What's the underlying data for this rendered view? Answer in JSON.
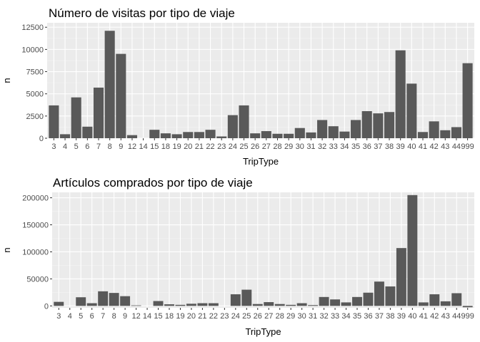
{
  "chart_data": [
    {
      "type": "bar",
      "title": "Número de visitas por tipo de viaje",
      "xlabel": "TripType",
      "ylabel": "n",
      "ylim": [
        0,
        13000
      ],
      "yticks": [
        0,
        2500,
        5000,
        7500,
        10000,
        12500
      ],
      "ytick_labels": [
        "0",
        "2500",
        "5000",
        "7500",
        "10000",
        "12500"
      ],
      "grid": true,
      "categories": [
        "3",
        "4",
        "5",
        "6",
        "7",
        "8",
        "9",
        "12",
        "14",
        "15",
        "18",
        "19",
        "20",
        "21",
        "22",
        "23",
        "24",
        "25",
        "26",
        "27",
        "28",
        "29",
        "30",
        "31",
        "32",
        "33",
        "34",
        "35",
        "36",
        "37",
        "38",
        "39",
        "40",
        "41",
        "42",
        "43",
        "44",
        "999"
      ],
      "values": [
        3700,
        450,
        4600,
        1300,
        5700,
        12100,
        9500,
        350,
        0,
        950,
        550,
        450,
        700,
        700,
        950,
        200,
        2600,
        3700,
        550,
        800,
        500,
        500,
        1150,
        650,
        2050,
        1350,
        750,
        2050,
        3050,
        2800,
        2950,
        9900,
        6150,
        700,
        1900,
        900,
        1250,
        8450
      ],
      "bar_color": "#595959"
    },
    {
      "type": "bar",
      "title": "Artículos comprados por tipo de viaje",
      "xlabel": "TripType",
      "ylabel": "n",
      "ylim": [
        -3500,
        210000
      ],
      "yticks": [
        0,
        50000,
        100000,
        150000,
        200000
      ],
      "ytick_labels": [
        "0",
        "50000",
        "100000",
        "150000",
        "200000"
      ],
      "grid": true,
      "categories": [
        "3",
        "4",
        "5",
        "6",
        "7",
        "8",
        "9",
        "12",
        "14",
        "15",
        "18",
        "19",
        "20",
        "21",
        "22",
        "23",
        "24",
        "25",
        "26",
        "27",
        "28",
        "29",
        "30",
        "31",
        "32",
        "33",
        "34",
        "35",
        "36",
        "37",
        "38",
        "39",
        "40",
        "41",
        "42",
        "43",
        "44",
        "999"
      ],
      "values": [
        7500,
        0,
        16000,
        5000,
        27000,
        24000,
        18000,
        1000,
        0,
        9000,
        3000,
        2000,
        4000,
        5000,
        5000,
        0,
        21500,
        30000,
        3500,
        7000,
        3500,
        2000,
        5000,
        1500,
        16500,
        12000,
        6500,
        16500,
        24500,
        45000,
        36000,
        107000,
        205000,
        6500,
        21500,
        8500,
        23500,
        -2500
      ],
      "bar_color": "#595959"
    }
  ],
  "colors": {
    "panel": "#ebebeb",
    "grid_major": "#ffffff",
    "grid_minor": "#f5f5f5",
    "tick": "#333333"
  }
}
